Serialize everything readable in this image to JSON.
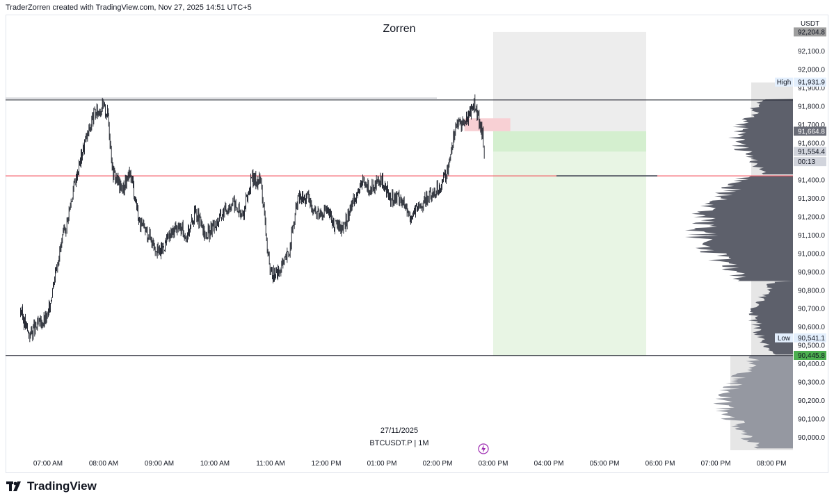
{
  "attribution": "TraderZorren created with TradingView.com, Nov 27, 2025 14:51 UTC+5",
  "brand": {
    "name": "TradingView",
    "logo_icon": "tradingview-logo-icon"
  },
  "chart_data": {
    "type": "line",
    "title": "Zorren",
    "symbol": "BTCUSDT.P | 1M",
    "date_label": "27/11/2025",
    "currency": "USDT",
    "x_ticks": [
      "07:00 AM",
      "08:00 AM",
      "09:00 AM",
      "10:00 AM",
      "11:00 AM",
      "12:00 PM",
      "01:00 PM",
      "02:00 PM",
      "03:00 PM",
      "04:00 PM",
      "05:00 PM",
      "06:00 PM",
      "07:00 PM",
      "08:00 PM"
    ],
    "y_ticks": [
      "90,000.0",
      "90,100.0",
      "90,200.0",
      "90,300.0",
      "90,400.0",
      "90,500.0",
      "90,600.0",
      "90,700.0",
      "90,800.0",
      "90,900.0",
      "91,000.0",
      "91,100.0",
      "91,200.0",
      "91,300.0",
      "91,400.0",
      "91,500.0",
      "91,600.0",
      "91,700.0",
      "91,800.0",
      "91,900.0",
      "92,000.0",
      "92,100.0"
    ],
    "ylim": [
      89915,
      92265
    ],
    "series": [
      {
        "x": [
          "06:30",
          "06:40",
          "06:50",
          "07:00",
          "07:10",
          "07:20",
          "07:30",
          "07:40",
          "07:50",
          "08:00",
          "08:05",
          "08:10",
          "08:20",
          "08:30",
          "08:40",
          "08:50",
          "09:00",
          "09:10",
          "09:20",
          "09:30",
          "09:40",
          "09:50",
          "10:00",
          "10:10",
          "10:20",
          "10:30",
          "10:40",
          "10:50",
          "11:00",
          "11:10",
          "11:20",
          "11:30",
          "11:40",
          "11:50",
          "12:00",
          "12:10",
          "12:20",
          "12:30",
          "12:40",
          "12:50",
          "13:00",
          "13:10",
          "13:20",
          "13:30",
          "13:40",
          "13:50",
          "14:00",
          "14:10",
          "14:20",
          "14:30",
          "14:40",
          "14:50",
          "14:51"
        ],
        "values": [
          90700,
          90560,
          90610,
          90650,
          90950,
          91150,
          91400,
          91600,
          91750,
          91800,
          91750,
          91450,
          91350,
          91430,
          91150,
          91100,
          91000,
          91080,
          91150,
          91100,
          91230,
          91090,
          91150,
          91230,
          91280,
          91200,
          91400,
          91400,
          90880,
          90900,
          91000,
          91300,
          91300,
          91220,
          91240,
          91150,
          91140,
          91300,
          91380,
          91350,
          91390,
          91300,
          91310,
          91200,
          91250,
          91300,
          91350,
          91430,
          91700,
          91720,
          91820,
          91620,
          91554
        ]
      }
    ],
    "horizontal_lines": [
      {
        "price": 91835,
        "color": "#131722"
      },
      {
        "price": 91845,
        "color": "#b2b5be"
      },
      {
        "price": 91422,
        "color": "#f23645"
      },
      {
        "price": 90445,
        "color": "#131722"
      }
    ],
    "position": {
      "type": "long",
      "start": "15:00",
      "end": "17:45",
      "entry": 91664.8,
      "target": 92204.8,
      "stop": 90445.8,
      "stop_color": "#e3e3e3",
      "profit_color": "#d6f0d0"
    },
    "price_labels": [
      {
        "label": "",
        "value": "92,204.8",
        "price": 92204.8,
        "bg": "#9e9e9e",
        "fg": "#131722"
      },
      {
        "label": "High",
        "value": "91,931.9",
        "price": 91931.9,
        "bg": "#e3effd",
        "fg": "#131722"
      },
      {
        "label": "",
        "value": "91,664.8",
        "price": 91664.8,
        "bg": "#6a6d78",
        "fg": "#ffffff"
      },
      {
        "label": "",
        "value": "91,554.4",
        "price": 91554.4,
        "bg": "#d1d4dc",
        "fg": "#131722"
      },
      {
        "label": "",
        "value": "00:13",
        "price": 91499.4,
        "bg": "#d1d4dc",
        "fg": "#131722"
      },
      {
        "label": "Low",
        "value": "90,541.1",
        "price": 90541.1,
        "bg": "#e3effd",
        "fg": "#131722"
      },
      {
        "label": "",
        "value": "90,445.8",
        "price": 90445.8,
        "bg": "#4caf50",
        "fg": "#131722"
      }
    ],
    "volume_profile_color": "#5d606b",
    "grid": false
  }
}
